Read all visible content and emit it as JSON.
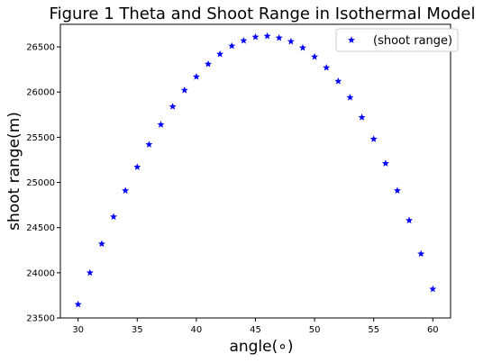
{
  "chart_data": {
    "type": "scatter",
    "title": "Figure 1 Theta and Shoot Range in Isothermal Model",
    "xlabel": "angle(∘)",
    "ylabel": "shoot range(m)",
    "xlim": [
      28.5,
      61.5
    ],
    "ylim": [
      23500,
      26750
    ],
    "xticks": [
      30,
      35,
      40,
      45,
      50,
      55,
      60
    ],
    "yticks": [
      23500,
      24000,
      24500,
      25000,
      25500,
      26000,
      26500
    ],
    "grid": false,
    "legend_position": "top-right",
    "marker": "star",
    "series": [
      {
        "name": "(shoot range)",
        "color": "#0000ff",
        "x": [
          30,
          31,
          32,
          33,
          34,
          35,
          36,
          37,
          38,
          39,
          40,
          41,
          42,
          43,
          44,
          45,
          46,
          47,
          48,
          49,
          50,
          51,
          52,
          53,
          54,
          55,
          56,
          57,
          58,
          59,
          60
        ],
        "y": [
          23650,
          24000,
          24320,
          24620,
          24910,
          25170,
          25420,
          25640,
          25840,
          26020,
          26170,
          26310,
          26420,
          26510,
          26570,
          26610,
          26620,
          26600,
          26560,
          26490,
          26390,
          26270,
          26120,
          25940,
          25720,
          25480,
          25210,
          24910,
          24580,
          24210,
          23820
        ]
      }
    ]
  }
}
